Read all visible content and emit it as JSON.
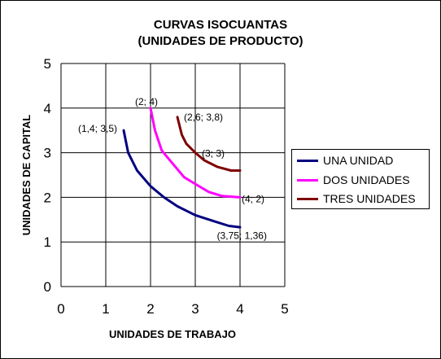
{
  "chart_data": {
    "type": "line",
    "title": "CURVAS ISOCUANTAS",
    "subtitle": "(UNIDADES DE PRODUCTO)",
    "xlabel": "UNIDADES DE TRABAJO",
    "ylabel": "UNIDADES DE CAPITAL",
    "xlim": [
      0,
      5
    ],
    "ylim": [
      0,
      5
    ],
    "xticks": [
      0,
      1,
      2,
      3,
      4,
      5
    ],
    "yticks": [
      0,
      1,
      2,
      3,
      4,
      5
    ],
    "grid": true,
    "legend_position": "right",
    "series": [
      {
        "name": "UNA UNIDAD",
        "color": "#00007f",
        "points": [
          [
            1.4,
            3.5
          ],
          [
            1.5,
            3.0
          ],
          [
            1.7,
            2.6
          ],
          [
            2.0,
            2.25
          ],
          [
            2.3,
            2.0
          ],
          [
            2.6,
            1.8
          ],
          [
            3.0,
            1.6
          ],
          [
            3.4,
            1.47
          ],
          [
            3.75,
            1.36
          ],
          [
            4.0,
            1.33
          ]
        ]
      },
      {
        "name": "DOS UNIDADES",
        "color": "#ff00ff",
        "points": [
          [
            2.0,
            4.0
          ],
          [
            2.1,
            3.5
          ],
          [
            2.25,
            3.05
          ],
          [
            2.5,
            2.75
          ],
          [
            2.75,
            2.45
          ],
          [
            3.0,
            2.3
          ],
          [
            3.3,
            2.12
          ],
          [
            3.6,
            2.03
          ],
          [
            4.0,
            2.0
          ]
        ]
      },
      {
        "name": "TRES UNIDADES",
        "color": "#7f0000",
        "points": [
          [
            2.6,
            3.8
          ],
          [
            2.7,
            3.4
          ],
          [
            2.8,
            3.2
          ],
          [
            3.0,
            3.0
          ],
          [
            3.2,
            2.83
          ],
          [
            3.5,
            2.68
          ],
          [
            3.8,
            2.6
          ],
          [
            4.0,
            2.6
          ]
        ]
      }
    ],
    "annotations": [
      {
        "text": "(1,4; 3,5)",
        "x": 1.4,
        "y": 3.5
      },
      {
        "text": "(2; 4)",
        "x": 2.0,
        "y": 4.0
      },
      {
        "text": "(2,6; 3,8)",
        "x": 2.6,
        "y": 3.8
      },
      {
        "text": "(3; 3)",
        "x": 3.0,
        "y": 3.0
      },
      {
        "text": "(4; 2)",
        "x": 4.0,
        "y": 2.0
      },
      {
        "text": "(3,75; 1,36)",
        "x": 3.75,
        "y": 1.36
      }
    ]
  }
}
